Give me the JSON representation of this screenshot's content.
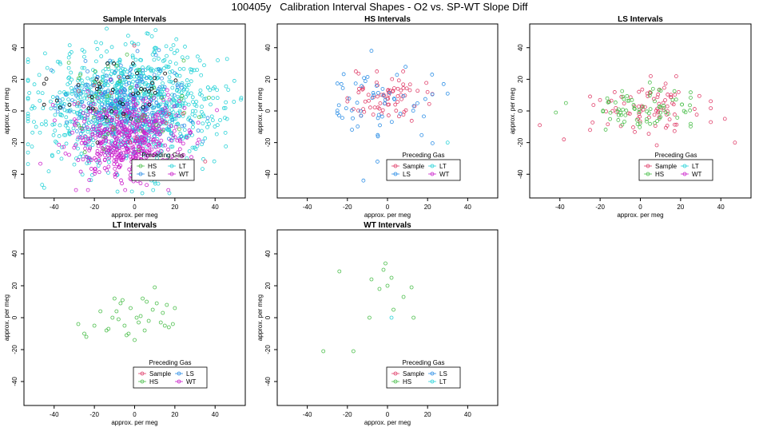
{
  "title": "100405y   Calibration Interval Shapes - O2 vs. SP-WT Slope Diff",
  "colors": {
    "Sample": "#e0406b",
    "HS": "#4cbf4c",
    "LS": "#2e8fe6",
    "LT": "#2ad3d8",
    "WT": "#cc22cc",
    "black": "#000000"
  },
  "chart_data": [
    {
      "type": "scatter",
      "title": "Sample Intervals",
      "xlabel": "approx. per meg",
      "ylabel": "approx. per meg",
      "xlim": [
        -55,
        55
      ],
      "ylim": [
        -55,
        55
      ],
      "xticks": [
        -40,
        -20,
        0,
        20,
        40
      ],
      "yticks": [
        -40,
        -20,
        0,
        20,
        40
      ],
      "legend": {
        "title": "Preceding Gas",
        "placement": "bottom-right",
        "entries": [
          "HS",
          "LT",
          "LS",
          "WT"
        ]
      },
      "series": [
        {
          "name": "LT",
          "cloud": {
            "n": 1000,
            "center": [
              -2,
              3
            ],
            "spread": [
              22,
              18
            ],
            "xmin": -53,
            "xmax": 53,
            "ymin": -52,
            "ymax": 52
          }
        },
        {
          "name": "LS",
          "cloud": {
            "n": 280,
            "center": [
              -5,
              2
            ],
            "spread": [
              16,
              14
            ],
            "xmin": -50,
            "xmax": 50,
            "ymin": -50,
            "ymax": 45
          }
        },
        {
          "name": "WT",
          "cloud": {
            "n": 520,
            "center": [
              -3,
              -18
            ],
            "spread": [
              14,
              13
            ],
            "xmin": -48,
            "xmax": 45,
            "ymin": -50,
            "ymax": 52
          }
        },
        {
          "name": "HS",
          "cloud": {
            "n": 50,
            "center": [
              -5,
              5
            ],
            "spread": [
              15,
              15
            ],
            "xmin": -45,
            "xmax": 45,
            "ymin": -45,
            "ymax": 45
          }
        },
        {
          "name": "Sample",
          "cloud": {
            "n": 20,
            "center": [
              -10,
              0
            ],
            "spread": [
              18,
              15
            ],
            "xmin": -45,
            "xmax": 45,
            "ymin": -45,
            "ymax": 45
          }
        },
        {
          "name": "black",
          "cloud": {
            "n": 40,
            "center": [
              -8,
              12
            ],
            "spread": [
              18,
              10
            ],
            "xmin": -45,
            "xmax": 45,
            "ymin": -20,
            "ymax": 30
          }
        }
      ]
    },
    {
      "type": "scatter",
      "title": "HS Intervals",
      "xlabel": "approx. per meg",
      "ylabel": "approx. per meg",
      "xlim": [
        -55,
        55
      ],
      "ylim": [
        -55,
        55
      ],
      "xticks": [
        -40,
        -20,
        0,
        20,
        40
      ],
      "yticks": [
        -40,
        -20,
        0,
        20,
        40
      ],
      "legend": {
        "title": "Preceding Gas",
        "placement": "bottom-right",
        "entries": [
          "Sample",
          "LT",
          "LS",
          "WT"
        ]
      },
      "series": [
        {
          "name": "Sample",
          "cloud": {
            "n": 75,
            "center": [
              0,
              8
            ],
            "spread": [
              12,
              8
            ],
            "xmin": -20,
            "xmax": 27,
            "ymin": -15,
            "ymax": 25
          }
        },
        {
          "name": "LS",
          "cloud": {
            "n": 55,
            "center": [
              -3,
              3
            ],
            "spread": [
              14,
              12
            ],
            "xmin": -25,
            "xmax": 30,
            "ymin": -35,
            "ymax": 28
          }
        },
        {
          "name": "LT",
          "points": [
            [
              30,
              -20
            ]
          ]
        },
        {
          "name": "LS",
          "points": [
            [
              -8,
              38
            ],
            [
              -12,
              -44
            ],
            [
              -5,
              -32
            ],
            [
              -23,
              17
            ],
            [
              28,
              17
            ]
          ]
        }
      ]
    },
    {
      "type": "scatter",
      "title": "LS Intervals",
      "xlabel": "approx. per meg",
      "ylabel": "approx. per meg",
      "xlim": [
        -55,
        55
      ],
      "ylim": [
        -55,
        55
      ],
      "xticks": [
        -40,
        -20,
        0,
        20,
        40
      ],
      "yticks": [
        -40,
        -20,
        0,
        20,
        40
      ],
      "legend": {
        "title": "Preceding Gas",
        "placement": "bottom-right",
        "entries": [
          "Sample",
          "LT",
          "HS",
          "WT"
        ]
      },
      "series": [
        {
          "name": "Sample",
          "cloud": {
            "n": 85,
            "center": [
              2,
              1
            ],
            "spread": [
              14,
              8
            ],
            "xmin": -25,
            "xmax": 35,
            "ymin": -25,
            "ymax": 22
          }
        },
        {
          "name": "HS",
          "cloud": {
            "n": 75,
            "center": [
              2,
              0
            ],
            "spread": [
              11,
              7
            ],
            "xmin": -30,
            "xmax": 25,
            "ymin": -20,
            "ymax": 18
          }
        },
        {
          "name": "Sample",
          "points": [
            [
              -50,
              -9
            ],
            [
              47,
              -20
            ],
            [
              42,
              -5
            ],
            [
              -38,
              -18
            ]
          ]
        },
        {
          "name": "HS",
          "points": [
            [
              -42,
              -1
            ],
            [
              -37,
              5
            ]
          ]
        }
      ]
    },
    {
      "type": "scatter",
      "title": "LT Intervals",
      "xlabel": "approx. per meg",
      "ylabel": "approx. per meg",
      "xlim": [
        -55,
        55
      ],
      "ylim": [
        -55,
        55
      ],
      "xticks": [
        -40,
        -20,
        0,
        20,
        40
      ],
      "yticks": [
        -40,
        -20,
        0,
        20,
        40
      ],
      "legend": {
        "title": "Preceding Gas",
        "placement": "bottom-right",
        "entries": [
          "Sample",
          "LS",
          "HS",
          "WT"
        ]
      },
      "series": [
        {
          "name": "HS",
          "points": [
            [
              -28,
              -4
            ],
            [
              -25,
              -10
            ],
            [
              -24,
              -12
            ],
            [
              -20,
              -5
            ],
            [
              -17,
              4
            ],
            [
              -14,
              -8
            ],
            [
              -13,
              -7
            ],
            [
              -11,
              0
            ],
            [
              -10,
              12
            ],
            [
              -9,
              4
            ],
            [
              -8,
              -1
            ],
            [
              -7,
              9
            ],
            [
              -6,
              11
            ],
            [
              -5,
              -5
            ],
            [
              -4,
              -11
            ],
            [
              -3,
              -10
            ],
            [
              -2,
              6
            ],
            [
              0,
              -14
            ],
            [
              1,
              0
            ],
            [
              2,
              -3
            ],
            [
              3,
              1
            ],
            [
              4,
              12
            ],
            [
              5,
              -8
            ],
            [
              6,
              10
            ],
            [
              7,
              -2
            ],
            [
              9,
              5
            ],
            [
              10,
              19
            ],
            [
              11,
              9
            ],
            [
              13,
              -3
            ],
            [
              14,
              3
            ],
            [
              15,
              -5
            ],
            [
              16,
              8
            ],
            [
              17,
              -6
            ],
            [
              19,
              -4
            ],
            [
              20,
              6
            ]
          ]
        }
      ]
    },
    {
      "type": "scatter",
      "title": "WT Intervals",
      "xlabel": "approx. per meg",
      "ylabel": "approx. per meg",
      "xlim": [
        -55,
        55
      ],
      "ylim": [
        -55,
        55
      ],
      "xticks": [
        -40,
        -20,
        0,
        20,
        40
      ],
      "yticks": [
        -40,
        -20,
        0,
        20,
        40
      ],
      "legend": {
        "title": "Preceding Gas",
        "placement": "bottom-right",
        "entries": [
          "Sample",
          "LS",
          "HS",
          "LT"
        ]
      },
      "series": [
        {
          "name": "HS",
          "points": [
            [
              -32,
              -21
            ],
            [
              -17,
              -21
            ],
            [
              -24,
              29
            ],
            [
              -9,
              0
            ],
            [
              -8,
              24
            ],
            [
              -4,
              18
            ],
            [
              -2,
              30
            ],
            [
              -1,
              34
            ],
            [
              0,
              20
            ],
            [
              2,
              25
            ],
            [
              3,
              5
            ],
            [
              8,
              13
            ],
            [
              12,
              19
            ],
            [
              13,
              0
            ]
          ]
        },
        {
          "name": "LT",
          "points": [
            [
              2,
              0
            ]
          ]
        }
      ]
    }
  ]
}
